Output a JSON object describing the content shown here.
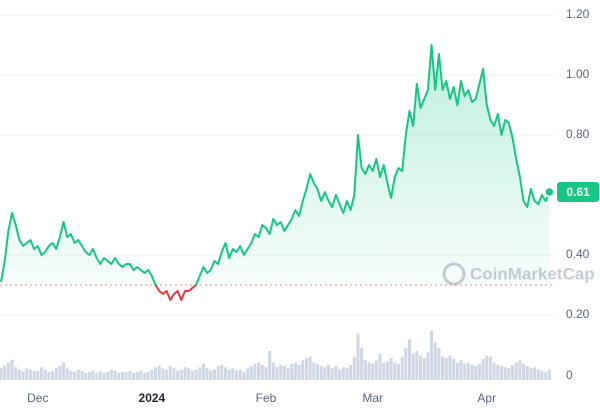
{
  "chart_data": {
    "type": "line",
    "watermark": "CoinMarketCap",
    "x": [
      0,
      1,
      2,
      3,
      4,
      5,
      6,
      7,
      8,
      9,
      10,
      11,
      12,
      13,
      14,
      15,
      16,
      17,
      18,
      19,
      20,
      21,
      22,
      23,
      24,
      25,
      26,
      27,
      28,
      29,
      30,
      31,
      32,
      33,
      34,
      35,
      36,
      37,
      38,
      39,
      40,
      41,
      42,
      43,
      44,
      45,
      46,
      47,
      48,
      49,
      50,
      51,
      52,
      53,
      54,
      55,
      56,
      57,
      58,
      59,
      60,
      61,
      62,
      63,
      64,
      65,
      66,
      67,
      68,
      69,
      70,
      71,
      72,
      73,
      74,
      75,
      76,
      77,
      78,
      79,
      80,
      81,
      82,
      83,
      84,
      85,
      86,
      87,
      88,
      89,
      90,
      91,
      92,
      93,
      94,
      95,
      96,
      97,
      98,
      99,
      100,
      101,
      102,
      103,
      104,
      105,
      106,
      107,
      108,
      109,
      110,
      111,
      112,
      113,
      114,
      115,
      116,
      117,
      118,
      119,
      120,
      121,
      122,
      123,
      124,
      125,
      126,
      127,
      128,
      129,
      130,
      131,
      132,
      133,
      134,
      135,
      136,
      137,
      138,
      139,
      140,
      141,
      142,
      143,
      144,
      145,
      146,
      147,
      148,
      149
    ],
    "series": [
      {
        "color": "#16c784",
        "down_color": "#ea3943",
        "values": [
          0.31,
          0.38,
          0.48,
          0.54,
          0.5,
          0.45,
          0.43,
          0.44,
          0.45,
          0.42,
          0.43,
          0.4,
          0.41,
          0.43,
          0.44,
          0.42,
          0.46,
          0.51,
          0.46,
          0.47,
          0.44,
          0.45,
          0.43,
          0.41,
          0.4,
          0.42,
          0.39,
          0.37,
          0.39,
          0.38,
          0.37,
          0.39,
          0.37,
          0.36,
          0.37,
          0.37,
          0.35,
          0.36,
          0.35,
          0.34,
          0.35,
          0.33,
          0.3,
          0.28,
          0.27,
          0.28,
          0.25,
          0.27,
          0.28,
          0.25,
          0.28,
          0.28,
          0.29,
          0.3,
          0.33,
          0.36,
          0.34,
          0.35,
          0.38,
          0.37,
          0.41,
          0.44,
          0.39,
          0.42,
          0.41,
          0.43,
          0.4,
          0.42,
          0.44,
          0.47,
          0.46,
          0.5,
          0.49,
          0.47,
          0.52,
          0.5,
          0.51,
          0.48,
          0.5,
          0.52,
          0.55,
          0.53,
          0.58,
          0.62,
          0.67,
          0.64,
          0.62,
          0.58,
          0.61,
          0.58,
          0.56,
          0.6,
          0.57,
          0.54,
          0.58,
          0.55,
          0.6,
          0.8,
          0.69,
          0.67,
          0.7,
          0.68,
          0.72,
          0.66,
          0.7,
          0.64,
          0.59,
          0.66,
          0.69,
          0.68,
          0.8,
          0.88,
          0.83,
          0.97,
          0.89,
          0.92,
          0.95,
          1.1,
          0.95,
          1.07,
          0.95,
          0.98,
          0.92,
          0.96,
          0.9,
          0.98,
          0.93,
          0.95,
          0.91,
          0.92,
          0.97,
          1.02,
          0.9,
          0.85,
          0.83,
          0.87,
          0.8,
          0.85,
          0.84,
          0.79,
          0.72,
          0.66,
          0.58,
          0.56,
          0.62,
          0.58,
          0.57,
          0.6,
          0.58,
          0.61
        ]
      },
      {
        "axis": "y2",
        "color": "#cfd6e4",
        "values": [
          20,
          25,
          30,
          35,
          22,
          18,
          15,
          20,
          18,
          16,
          15,
          22,
          18,
          14,
          16,
          20,
          24,
          30,
          20,
          16,
          14,
          18,
          15,
          12,
          14,
          16,
          13,
          15,
          12,
          14,
          18,
          16,
          12,
          14,
          13,
          15,
          12,
          14,
          16,
          12,
          14,
          18,
          22,
          25,
          20,
          18,
          24,
          20,
          16,
          18,
          22,
          20,
          16,
          18,
          22,
          28,
          20,
          16,
          18,
          24,
          26,
          22,
          18,
          20,
          16,
          18,
          14,
          20,
          24,
          28,
          30,
          26,
          22,
          50,
          30,
          22,
          26,
          24,
          20,
          28,
          30,
          26,
          34,
          38,
          40,
          30,
          28,
          24,
          22,
          26,
          20,
          24,
          18,
          22,
          20,
          26,
          40,
          80,
          55,
          35,
          30,
          28,
          34,
          45,
          30,
          32,
          38,
          30,
          28,
          40,
          55,
          70,
          45,
          50,
          42,
          38,
          48,
          85,
          65,
          55,
          40,
          38,
          42,
          36,
          30,
          34,
          28,
          30,
          26,
          24,
          28,
          36,
          42,
          40,
          30,
          26,
          24,
          22,
          20,
          26,
          30,
          34,
          28,
          24,
          20,
          22,
          18,
          16,
          14,
          18
        ]
      }
    ],
    "baseline": 0.3,
    "xlim": [
      0,
      150
    ],
    "xticks": [
      {
        "value": 10,
        "label": "Dec"
      },
      {
        "value": 41,
        "label": "2024"
      },
      {
        "value": 72,
        "label": "Feb"
      },
      {
        "value": 101,
        "label": "Mar"
      },
      {
        "value": 132,
        "label": "Apr"
      }
    ],
    "ylim": [
      0,
      1.25
    ],
    "yticks": [
      {
        "value": 0.2,
        "label": "0.20"
      },
      {
        "value": 0.4,
        "label": "0.40"
      },
      {
        "value": 0.8,
        "label": "0.80"
      },
      {
        "value": 1.0,
        "label": "1.00"
      },
      {
        "value": 1.2,
        "label": "1.20"
      }
    ],
    "y2lim": [
      0,
      100
    ],
    "y2ticks": [
      0
    ],
    "grid": true
  }
}
